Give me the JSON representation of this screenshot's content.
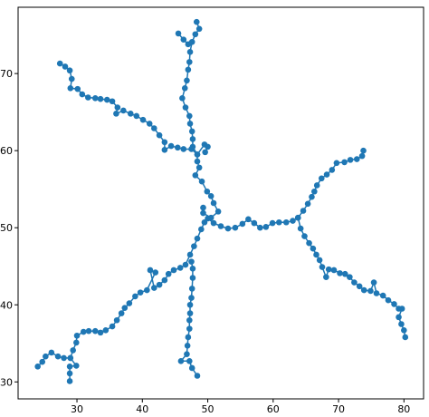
{
  "chart_data": {
    "type": "line",
    "color": "#1f77b4",
    "markers": true,
    "grid": false,
    "xlim": [
      21.0,
      83.0
    ],
    "ylim": [
      27.8,
      78.6
    ],
    "xticks": [
      30,
      40,
      50,
      60,
      70,
      80
    ],
    "yticks": [
      30,
      40,
      50,
      60,
      70
    ],
    "series": [
      {
        "x": [
          45.5,
          46.3,
          47.0
        ],
        "values": [
          75.2,
          74.4,
          73.8
        ]
      },
      {
        "x": [
          48.3,
          48.7,
          48.1,
          47.6,
          47.3,
          47.2,
          47.0,
          46.8,
          46.5,
          46.1,
          46.6,
          47.2,
          47.3,
          47.6,
          47.7,
          47.7,
          48.4,
          48.4,
          48.7,
          48.1,
          49.1,
          49.9,
          50.5,
          50.9,
          51.6,
          50.5,
          49.3,
          49.3
        ],
        "values": [
          76.7,
          75.8,
          75.1,
          74.1,
          72.8,
          71.5,
          70.5,
          69.1,
          68.1,
          66.8,
          65.6,
          64.5,
          63.5,
          62.5,
          61.5,
          60.5,
          59.5,
          58.6,
          57.8,
          56.8,
          56.0,
          54.7,
          54.1,
          53.2,
          52.1,
          51.3,
          51.9,
          52.6
        ]
      },
      {
        "x": [
          27.4,
          28.2,
          28.9,
          29.2,
          29.0,
          30.1,
          30.8,
          31.7,
          32.8,
          33.6,
          34.6,
          35.4,
          36.2,
          36.0,
          37.1,
          38.2,
          39.1,
          40.1,
          41.1,
          41.8,
          42.6,
          43.4,
          43.4,
          44.4,
          45.4,
          46.3,
          47.5,
          48.4,
          49.5,
          50.0,
          49.6
        ],
        "values": [
          71.3,
          70.9,
          70.4,
          69.3,
          68.1,
          68.0,
          67.3,
          66.9,
          66.8,
          66.7,
          66.6,
          66.4,
          65.6,
          64.8,
          65.2,
          64.8,
          64.5,
          64.0,
          63.5,
          62.9,
          62.0,
          61.1,
          60.1,
          60.6,
          60.4,
          60.2,
          60.2,
          59.5,
          60.8,
          60.5,
          59.8
        ]
      },
      {
        "x": [
          50.0,
          50.9,
          52.0,
          53.1,
          54.2,
          55.3,
          56.2,
          57.1,
          58.0,
          58.9,
          59.9,
          60.9,
          62.0,
          63.0,
          63.8,
          64.6,
          65.3,
          65.9,
          66.3,
          66.7,
          67.4,
          68.2,
          69.0,
          69.7,
          70.9,
          71.8,
          72.8,
          73.6,
          73.8
        ],
        "values": [
          51.2,
          50.6,
          50.2,
          49.9,
          50.0,
          50.5,
          51.1,
          50.6,
          50.0,
          50.1,
          50.6,
          50.7,
          50.7,
          50.9,
          51.3,
          52.2,
          53.1,
          54.0,
          54.7,
          55.5,
          56.4,
          56.9,
          57.5,
          58.4,
          58.5,
          58.8,
          58.9,
          59.3,
          60.0
        ]
      },
      {
        "x": [
          63.8,
          64.2,
          64.8,
          65.5,
          66.1,
          66.6,
          67.1,
          67.5,
          68.1,
          68.5,
          69.3,
          70.2,
          71.0,
          71.7,
          72.4,
          73.2,
          73.9,
          74.9,
          75.4,
          75.8,
          76.8,
          77.6,
          78.5,
          79.2,
          79.7,
          79.2,
          79.6,
          80.0,
          80.2
        ],
        "values": [
          51.3,
          49.9,
          48.9,
          48.0,
          47.3,
          46.5,
          45.8,
          44.9,
          43.6,
          44.6,
          44.5,
          44.1,
          44.0,
          43.6,
          42.9,
          42.4,
          41.9,
          41.8,
          42.9,
          41.5,
          41.2,
          40.6,
          40.1,
          39.5,
          39.5,
          38.4,
          37.5,
          36.7,
          35.8
        ]
      },
      {
        "x": [
          49.5,
          49.0,
          48.4,
          47.9,
          47.3,
          46.6,
          45.8,
          44.8,
          44.0,
          43.4,
          42.6,
          41.8,
          41.2,
          42.0,
          40.7,
          39.7,
          38.9,
          38.0,
          37.3,
          36.8,
          36.1,
          35.4,
          34.4,
          33.6,
          32.8,
          31.8,
          31.0,
          30.0,
          29.9,
          29.4,
          29.0,
          28.0,
          27.1,
          26.1,
          25.2,
          24.7,
          24.0
        ],
        "values": [
          50.7,
          49.8,
          48.6,
          47.6,
          46.5,
          45.2,
          44.8,
          44.5,
          44.0,
          43.2,
          42.6,
          42.2,
          44.5,
          44.2,
          41.9,
          41.6,
          41.1,
          40.2,
          39.6,
          38.9,
          38.0,
          37.2,
          36.7,
          36.4,
          36.6,
          36.6,
          36.5,
          36.0,
          35.1,
          34.1,
          33.1,
          33.1,
          33.3,
          33.8,
          33.3,
          32.6,
          32.0
        ]
      },
      {
        "x": [
          29.0,
          29.9,
          28.9,
          28.9,
          28.9
        ],
        "values": [
          33.1,
          32.1,
          32.0,
          31.1,
          30.1
        ]
      },
      {
        "x": [
          47.5,
          47.7,
          47.7,
          47.6,
          47.5,
          47.3,
          47.3,
          47.2,
          47.2,
          47.0,
          46.9,
          46.8,
          45.9,
          47.2,
          47.6,
          48.4
        ],
        "values": [
          45.6,
          44.7,
          43.5,
          42.1,
          40.9,
          40.0,
          38.9,
          38.0,
          36.9,
          35.8,
          34.7,
          33.6,
          32.7,
          32.7,
          31.8,
          30.8
        ]
      }
    ]
  }
}
